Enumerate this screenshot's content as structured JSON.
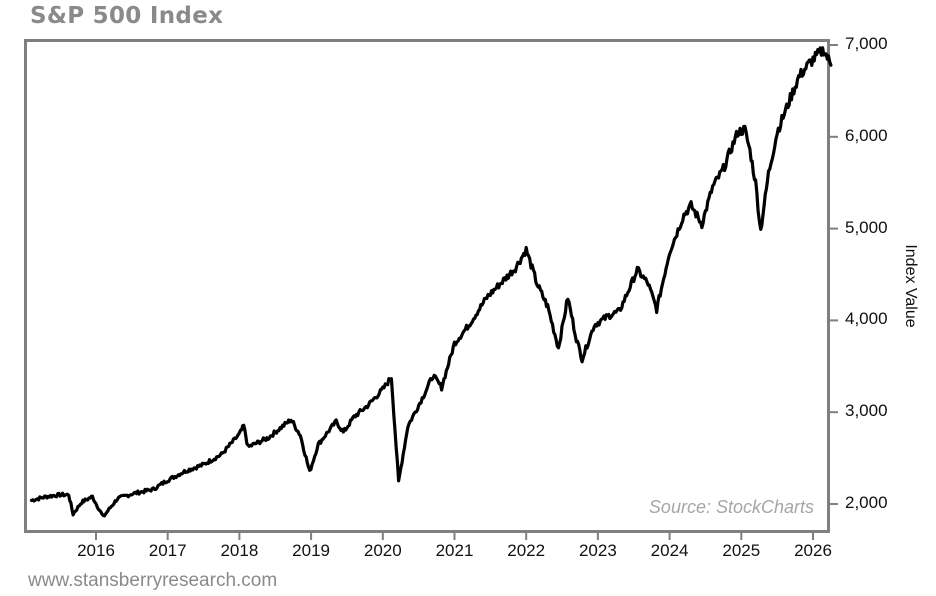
{
  "title": "S&P 500 Index",
  "source_note": "Source: StockCharts",
  "footer": "www.stansberryresearch.com",
  "colors": {
    "line": "#000000",
    "frame": "#7f7f7f",
    "title": "#8a8a8a",
    "source": "#a6a6a6"
  },
  "chart_data": {
    "type": "line",
    "title": "S&P 500 Index",
    "xlabel": "",
    "ylabel": "Index Value",
    "y_axis_position": "right",
    "ylim": [
      1650,
      7050
    ],
    "xlim": [
      2015.1,
      2026.35
    ],
    "yticks": [
      2000,
      3000,
      4000,
      5000,
      6000,
      7000
    ],
    "ytick_labels": [
      "2,000",
      "3,000",
      "4,000",
      "5,000",
      "6,000",
      "7,000"
    ],
    "xticks": [
      2016,
      2017,
      2018,
      2019,
      2020,
      2021,
      2022,
      2023,
      2024,
      2025,
      2026
    ],
    "xtick_labels": [
      "2016",
      "2017",
      "2018",
      "2019",
      "2020",
      "2021",
      "2022",
      "2023",
      "2024",
      "2025",
      "2026"
    ],
    "grid": false,
    "legend": null,
    "annotations": [
      "Source: StockCharts"
    ],
    "series": [
      {
        "name": "S&P 500 Index",
        "x": [
          2015.1,
          2015.3,
          2015.5,
          2015.62,
          2015.68,
          2015.8,
          2015.95,
          2016.1,
          2016.3,
          2016.5,
          2016.8,
          2017.0,
          2017.25,
          2017.5,
          2017.75,
          2018.0,
          2018.06,
          2018.12,
          2018.4,
          2018.72,
          2018.85,
          2018.98,
          2019.1,
          2019.35,
          2019.45,
          2019.6,
          2019.8,
          2020.0,
          2020.12,
          2020.22,
          2020.35,
          2020.55,
          2020.7,
          2020.82,
          2021.0,
          2021.2,
          2021.45,
          2021.7,
          2021.85,
          2022.0,
          2022.15,
          2022.3,
          2022.45,
          2022.58,
          2022.7,
          2022.78,
          2022.95,
          2023.15,
          2023.3,
          2023.55,
          2023.7,
          2023.82,
          2024.0,
          2024.2,
          2024.3,
          2024.45,
          2024.6,
          2024.75,
          2024.95,
          2025.05,
          2025.12,
          2025.2,
          2025.27,
          2025.38,
          2025.5,
          2025.65,
          2025.8,
          2025.95,
          2026.05,
          2026.15,
          2026.25
        ],
        "values": [
          2040,
          2080,
          2100,
          2100,
          1890,
          2020,
          2080,
          1860,
          2060,
          2110,
          2160,
          2260,
          2360,
          2430,
          2540,
          2760,
          2850,
          2620,
          2720,
          2920,
          2750,
          2350,
          2650,
          2900,
          2780,
          2950,
          3080,
          3250,
          3380,
          2240,
          2850,
          3150,
          3400,
          3270,
          3750,
          3950,
          4250,
          4450,
          4570,
          4770,
          4400,
          4150,
          3700,
          4250,
          3800,
          3580,
          3950,
          4050,
          4100,
          4550,
          4400,
          4120,
          4750,
          5150,
          5250,
          5050,
          5450,
          5650,
          6050,
          6080,
          5850,
          5500,
          4980,
          5600,
          6050,
          6350,
          6650,
          6800,
          6880,
          6950,
          6780
        ]
      }
    ]
  }
}
